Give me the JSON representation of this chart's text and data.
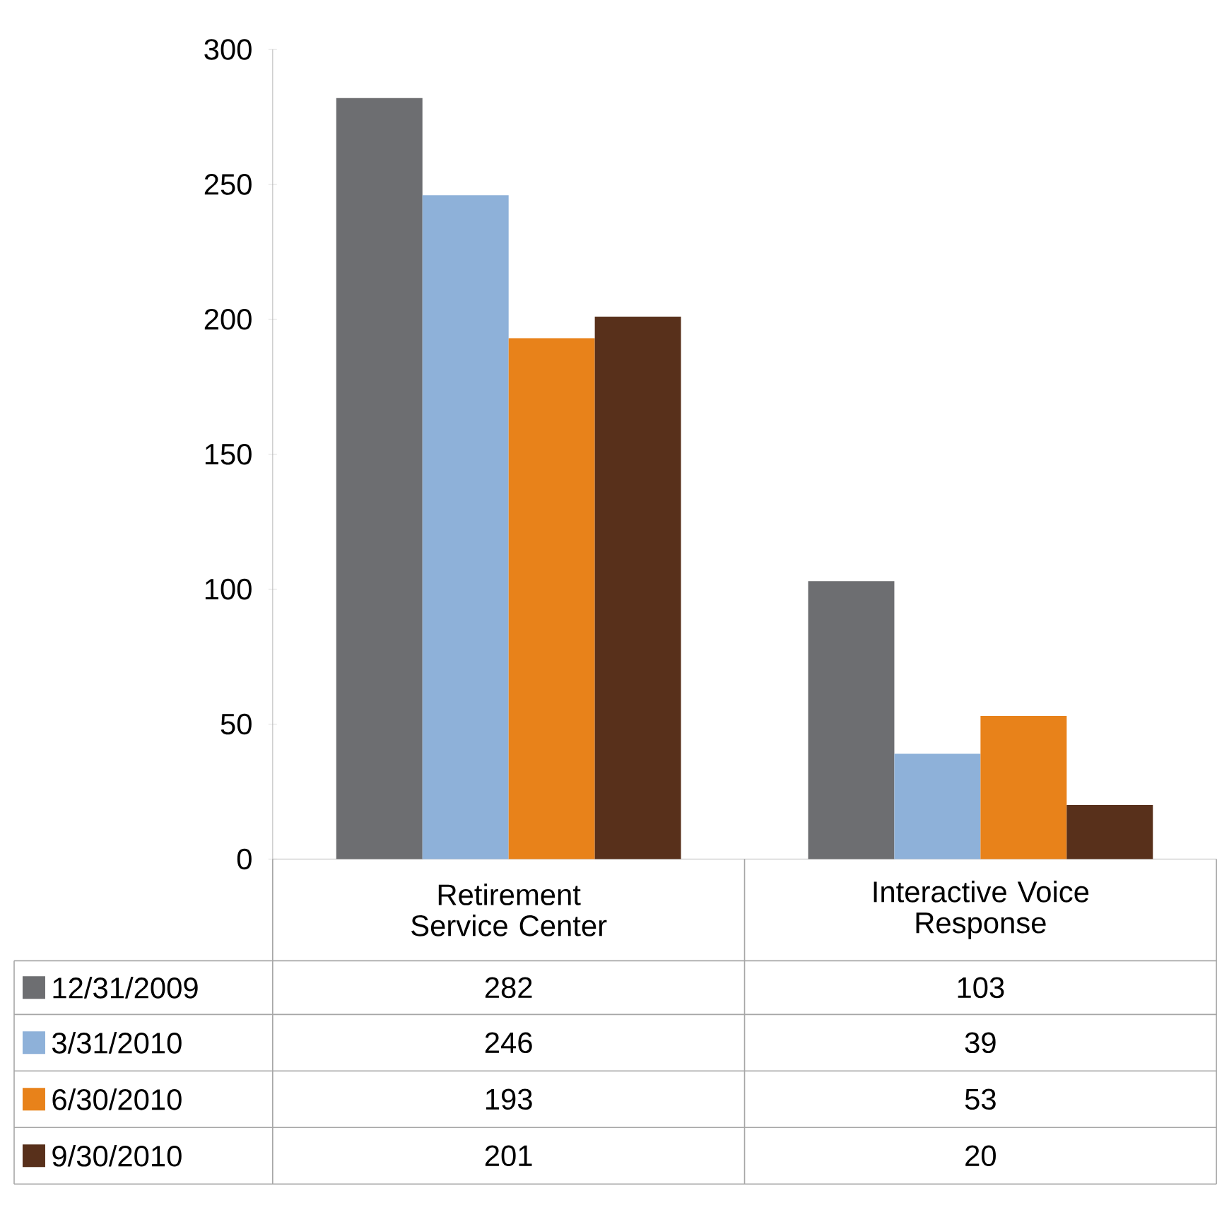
{
  "chart_data": {
    "type": "bar",
    "categories": [
      "Retirement Service Center",
      "Interactive Voice Response"
    ],
    "series": [
      {
        "name": "12/31/2009",
        "color": "#6d6e71",
        "values": [
          282,
          103
        ]
      },
      {
        "name": "3/31/2010",
        "color": "#8eb1d9",
        "values": [
          246,
          39
        ]
      },
      {
        "name": "6/30/2010",
        "color": "#e8821a",
        "values": [
          193,
          53
        ]
      },
      {
        "name": "9/30/2010",
        "color": "#58301b",
        "values": [
          201,
          20
        ]
      }
    ],
    "ylim": [
      0,
      300
    ],
    "yticks": [
      0,
      50,
      100,
      150,
      200,
      250,
      300
    ],
    "grid": false,
    "legend": "bottom",
    "data_labels": true
  }
}
